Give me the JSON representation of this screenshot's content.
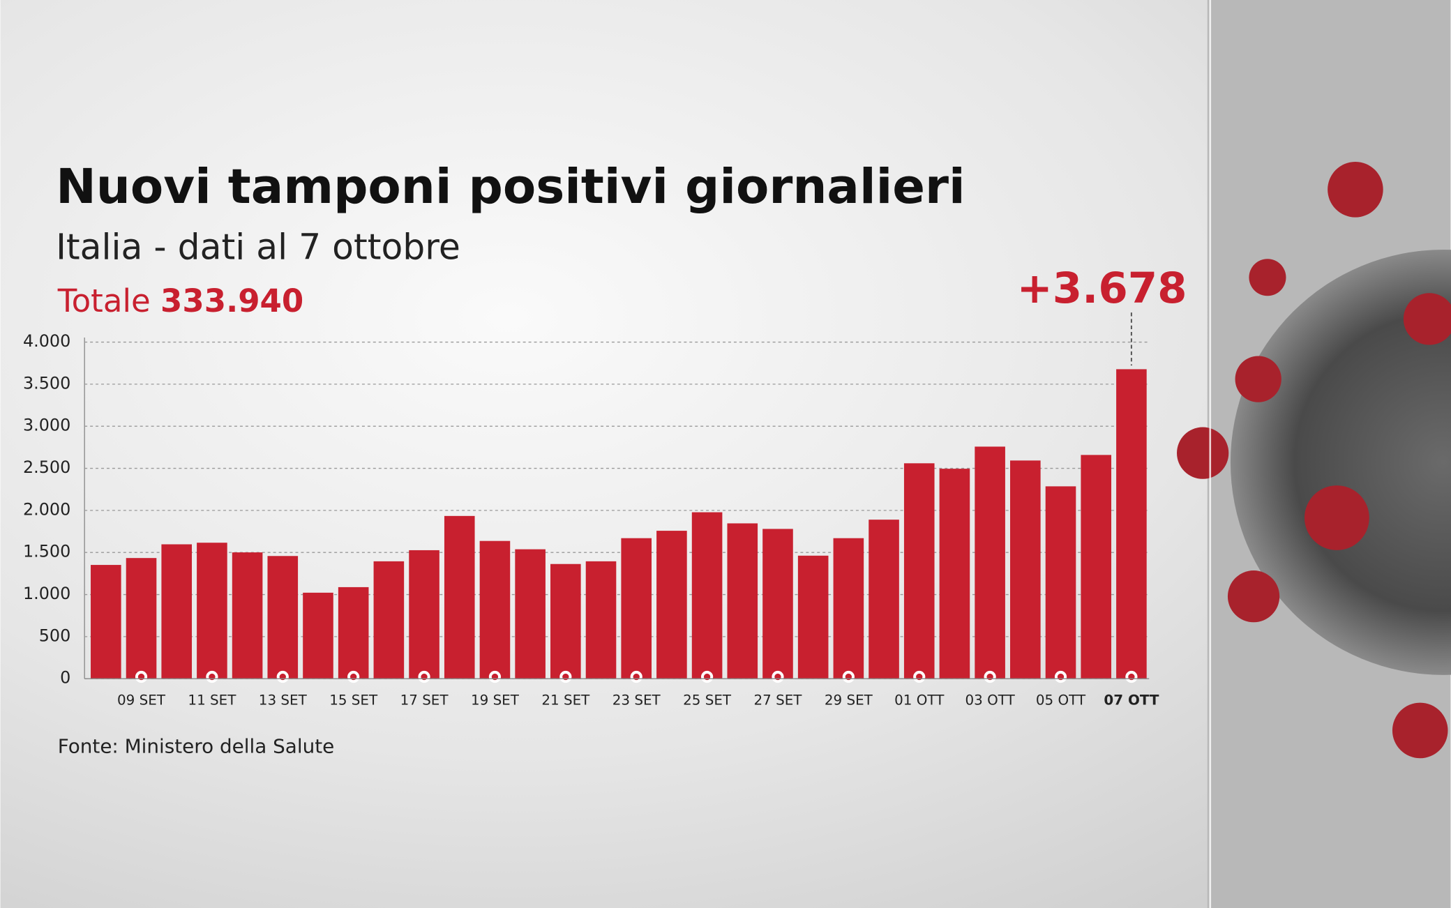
{
  "chart_data": {
    "type": "bar",
    "title": "Nuovi tamponi positivi giornalieri",
    "subtitle": "Italia - dati al 7 ottobre",
    "total_label": "Totale",
    "total": "333.940",
    "annotation": "+3.678",
    "source": "Fonte: Ministero della Salute",
    "categories": [
      null,
      "09 SET",
      null,
      "11 SET",
      null,
      "13 SET",
      null,
      "15 SET",
      null,
      "17 SET",
      null,
      "19 SET",
      null,
      "21 SET",
      null,
      "23 SET",
      null,
      "25 SET",
      null,
      "27 SET",
      null,
      "29 SET",
      null,
      "01 OTT",
      null,
      "03 OTT",
      null,
      "05 OTT",
      null,
      "07 OTT"
    ],
    "values": [
      1352,
      1434,
      1597,
      1616,
      1501,
      1458,
      1022,
      1088,
      1395,
      1527,
      1934,
      1637,
      1538,
      1363,
      1395,
      1670,
      1758,
      1978,
      1846,
      1780,
      1462,
      1670,
      1890,
      2560,
      2495,
      2758,
      2593,
      2286,
      2659,
      3678
    ],
    "color": "#c8202f",
    "ylim": [
      0,
      4000
    ],
    "yticks": [
      0,
      500,
      {
        "value": 1000,
        "label": "1.000"
      },
      {
        "value": 1500,
        "label": "1.500"
      },
      {
        "value": 2000,
        "label": "2.000"
      },
      {
        "value": 2500,
        "label": "2.500"
      },
      {
        "value": 3000,
        "label": "3.000"
      },
      {
        "value": 3500,
        "label": "3.500"
      },
      {
        "value": 4000,
        "label": "4.000"
      }
    ],
    "grid": true
  }
}
